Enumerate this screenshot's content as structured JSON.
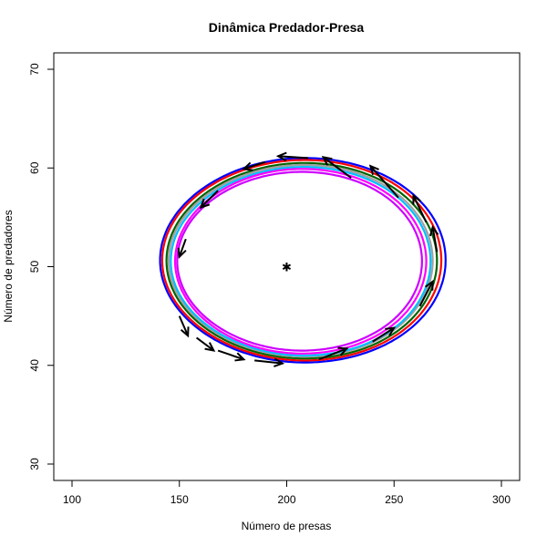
{
  "chart_data": {
    "type": "line",
    "title": "Dinâmica Predador-Presa",
    "xlabel": "Número de presas",
    "ylabel": "Número de predadores",
    "xlim": [
      100,
      300
    ],
    "ylim": [
      30,
      70
    ],
    "x_ticks": [
      100,
      150,
      200,
      250,
      300
    ],
    "y_ticks": [
      30,
      40,
      50,
      60,
      70
    ],
    "equilibrium": {
      "x": 200,
      "y": 50
    },
    "series": [
      {
        "color": "#0000ff",
        "center_x": 206,
        "x_min": 141,
        "x_max": 274,
        "y_min": 40.3,
        "y_max": 61.0,
        "skew": 0.035
      },
      {
        "color": "#ff0000",
        "center_x": 206,
        "x_min": 142,
        "x_max": 272,
        "y_min": 40.5,
        "y_max": 60.8,
        "skew": 0.035
      },
      {
        "color": "#006400",
        "center_x": 206,
        "x_min": 144,
        "x_max": 270,
        "y_min": 40.7,
        "y_max": 60.5,
        "skew": 0.035
      },
      {
        "color": "#a0a0a0",
        "center_x": 206,
        "x_min": 145,
        "x_max": 268,
        "y_min": 40.9,
        "y_max": 60.3,
        "skew": 0.035
      },
      {
        "color": "#00bfff",
        "center_x": 206,
        "x_min": 146,
        "x_max": 267,
        "y_min": 41.0,
        "y_max": 60.1,
        "skew": 0.035
      },
      {
        "color": "#ff00ff",
        "center_x": 205,
        "x_min": 148,
        "x_max": 265,
        "y_min": 41.2,
        "y_max": 59.9,
        "skew": 0.035
      },
      {
        "color": "#cc00ff",
        "center_x": 205,
        "x_min": 149,
        "x_max": 263,
        "y_min": 41.5,
        "y_max": 59.6,
        "skew": 0.035
      }
    ],
    "arrows": [
      {
        "x0": 230,
        "y0": 59.0,
        "x1": 217,
        "y1": 61.1
      },
      {
        "x0": 252,
        "y0": 57.0,
        "x1": 239,
        "y1": 60.2
      },
      {
        "x0": 265,
        "y0": 54.5,
        "x1": 259,
        "y1": 57.2
      },
      {
        "x0": 210,
        "y0": 61.0,
        "x1": 196,
        "y1": 61.2
      },
      {
        "x0": 190,
        "y0": 60.6,
        "x1": 180,
        "y1": 59.9
      },
      {
        "x0": 168,
        "y0": 57.7,
        "x1": 160,
        "y1": 56.0
      },
      {
        "x0": 153,
        "y0": 52.8,
        "x1": 150,
        "y1": 51.0
      },
      {
        "x0": 150,
        "y0": 45.0,
        "x1": 154,
        "y1": 43.0
      },
      {
        "x0": 158,
        "y0": 42.8,
        "x1": 166,
        "y1": 41.5
      },
      {
        "x0": 168,
        "y0": 41.5,
        "x1": 180,
        "y1": 40.6
      },
      {
        "x0": 185,
        "y0": 40.5,
        "x1": 198,
        "y1": 40.2
      },
      {
        "x0": 215,
        "y0": 40.6,
        "x1": 228,
        "y1": 41.7
      },
      {
        "x0": 240,
        "y0": 42.4,
        "x1": 250,
        "y1": 43.8
      },
      {
        "x0": 262,
        "y0": 46.0,
        "x1": 268,
        "y1": 48.5
      },
      {
        "x0": 270,
        "y0": 51.5,
        "x1": 268,
        "y1": 54.0
      }
    ]
  }
}
